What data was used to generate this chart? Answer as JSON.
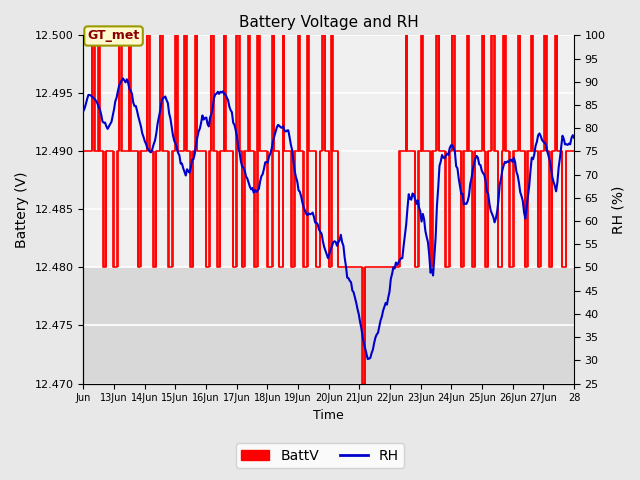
{
  "title": "Battery Voltage and RH",
  "xlabel": "Time",
  "ylabel_left": "Battery (V)",
  "ylabel_right": "RH (%)",
  "annotation": "GT_met",
  "batt_ylim": [
    12.47,
    12.5
  ],
  "rh_ylim": [
    25,
    100
  ],
  "x_tick_labels": [
    "Jun",
    "13Jun",
    "14Jun",
    "15Jun",
    "16Jun",
    "17Jun",
    "18Jun",
    "19Jun",
    "20Jun",
    "21Jun",
    "22Jun",
    "23Jun",
    "24Jun",
    "25Jun",
    "26Jun",
    "27Jun",
    "28"
  ],
  "batt_color": "#FF0000",
  "rh_color": "#0000CC",
  "bg_color": "#E8E8E8",
  "plot_bg_light": "#F0F0F0",
  "plot_bg_dark": "#D8D8D8",
  "grid_color": "#FFFFFF",
  "legend_batt": "BattV",
  "legend_rh": "RH",
  "batt_yticks": [
    12.47,
    12.475,
    12.48,
    12.485,
    12.49,
    12.495,
    12.5
  ],
  "rh_yticks": [
    25,
    30,
    35,
    40,
    45,
    50,
    55,
    60,
    65,
    70,
    75,
    80,
    85,
    90,
    95,
    100
  ],
  "n_days": 16
}
